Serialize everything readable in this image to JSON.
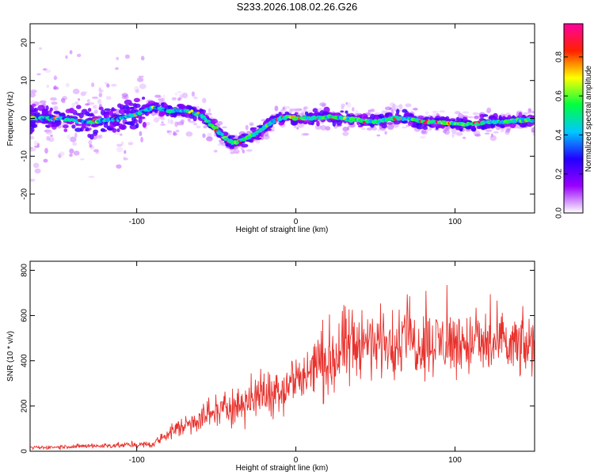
{
  "title": "S233.2026.108.02.26.G26",
  "chart_data": [
    {
      "type": "heatmap",
      "name": "spectrogram",
      "xlabel": "Height of straight line (km)",
      "ylabel": "Frequency (Hz)",
      "xlim": [
        -167,
        150
      ],
      "ylim": [
        -25,
        25
      ],
      "xticks": [
        -100,
        0,
        100
      ],
      "yticks": [
        -20,
        -10,
        0,
        10,
        20
      ],
      "colorbar": {
        "label": "Normalized spectral amplitude",
        "range": [
          0,
          0.97
        ],
        "ticks": [
          0.0,
          0.2,
          0.4,
          0.6,
          0.8
        ],
        "stops": [
          "#ffffff",
          "#9a00ff",
          "#2200ff",
          "#00c8ff",
          "#00ff40",
          "#ffff00",
          "#ff2000",
          "#ff00a0"
        ]
      },
      "ridge": {
        "x": [
          -167,
          -150,
          -130,
          -110,
          -100,
          -90,
          -80,
          -70,
          -60,
          -55,
          -50,
          -45,
          -40,
          -35,
          -30,
          -25,
          -20,
          -15,
          -10,
          -5,
          0,
          10,
          20,
          30,
          40,
          50,
          60,
          70,
          80,
          90,
          100,
          110,
          120,
          130,
          140,
          150
        ],
        "freq_hz": [
          0,
          0,
          -1,
          0,
          1,
          3,
          2,
          2,
          1,
          -1,
          -3,
          -5,
          -6.5,
          -6,
          -5,
          -4,
          -2.5,
          -1,
          0,
          0.5,
          0,
          0,
          0.5,
          0,
          -0.5,
          -1,
          0,
          0,
          -1,
          -1,
          -1.5,
          -1.5,
          -1,
          -1,
          -0.5,
          -0.5
        ]
      }
    },
    {
      "type": "line",
      "name": "snr",
      "xlabel": "Height of straight line (km)",
      "ylabel": "SNR (10 * v/v)",
      "xlim": [
        -167,
        150
      ],
      "ylim": [
        0,
        840
      ],
      "xticks": [
        -100,
        0,
        100
      ],
      "yticks": [
        0,
        200,
        400,
        600,
        800
      ],
      "color": "#e8322d",
      "trend": {
        "x": [
          -167,
          -120,
          -90,
          -80,
          -60,
          -40,
          -20,
          0,
          10,
          20,
          30,
          40,
          50,
          60,
          80,
          100,
          120,
          150
        ],
        "snr": [
          15,
          25,
          30,
          80,
          150,
          200,
          250,
          310,
          360,
          400,
          440,
          470,
          480,
          490,
          480,
          480,
          470,
          460
        ]
      }
    }
  ]
}
